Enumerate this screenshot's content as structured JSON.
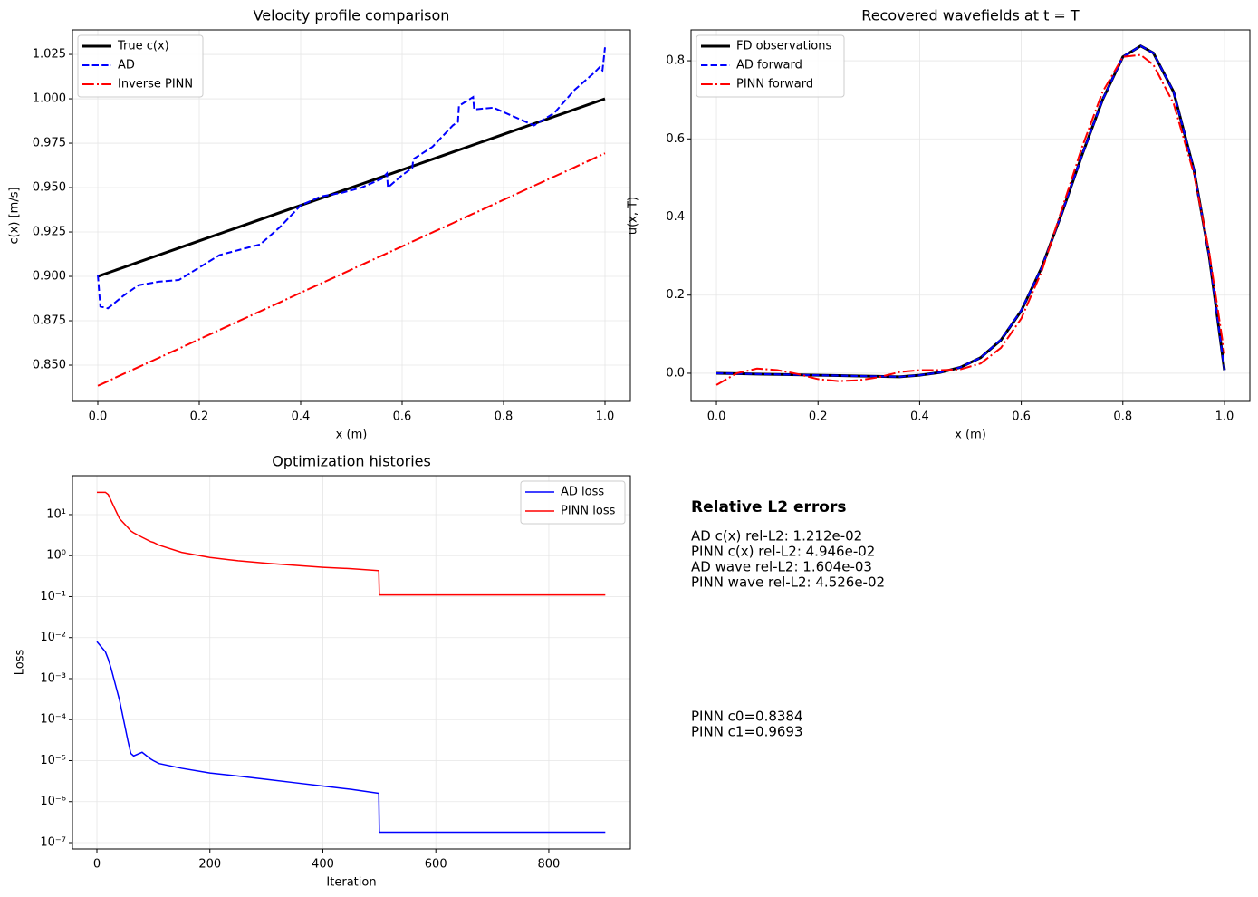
{
  "chart_data": [
    {
      "type": "line",
      "title": "Velocity profile comparison",
      "xlabel": "x (m)",
      "ylabel": "c(x) [m/s]",
      "x": [
        0,
        0.005,
        0.02,
        0.05,
        0.08,
        0.12,
        0.16,
        0.2,
        0.24,
        0.28,
        0.32,
        0.36,
        0.4,
        0.44,
        0.48,
        0.52,
        0.56,
        0.57,
        0.572,
        0.6,
        0.62,
        0.622,
        0.66,
        0.7,
        0.71,
        0.712,
        0.74,
        0.742,
        0.78,
        0.82,
        0.86,
        0.9,
        0.94,
        0.98,
        0.99,
        0.995,
        1.0
      ],
      "series": [
        {
          "name": "True c(x)",
          "color": "#000000",
          "linewidth": 3,
          "linestyle": "solid",
          "values": [
            0.9,
            0.9005,
            0.902,
            0.905,
            0.908,
            0.912,
            0.916,
            0.92,
            0.924,
            0.928,
            0.932,
            0.936,
            0.94,
            0.944,
            0.948,
            0.952,
            0.956,
            0.957,
            0.9572,
            0.96,
            0.962,
            0.9622,
            0.966,
            0.97,
            0.971,
            0.9712,
            0.974,
            0.9742,
            0.978,
            0.982,
            0.986,
            0.99,
            0.994,
            0.998,
            0.999,
            0.9995,
            1.0
          ]
        },
        {
          "name": "AD",
          "color": "#0000ff",
          "linewidth": 2,
          "linestyle": "dashed",
          "values": [
            0.901,
            0.883,
            0.882,
            0.889,
            0.895,
            0.897,
            0.898,
            0.905,
            0.912,
            0.915,
            0.918,
            0.928,
            0.94,
            0.945,
            0.947,
            0.95,
            0.955,
            0.958,
            0.95,
            0.957,
            0.961,
            0.966,
            0.973,
            0.985,
            0.987,
            0.996,
            1.001,
            0.994,
            0.995,
            0.99,
            0.985,
            0.992,
            1.005,
            1.015,
            1.018,
            1.016,
            1.029
          ]
        },
        {
          "name": "Inverse PINN",
          "color": "#ff0000",
          "linewidth": 2,
          "linestyle": "dashdot",
          "values": [
            0.8384,
            0.839,
            0.841,
            0.845,
            0.8489,
            0.8541,
            0.8593,
            0.8646,
            0.8698,
            0.8751,
            0.8803,
            0.8855,
            0.8908,
            0.896,
            0.9012,
            0.9065,
            0.9117,
            0.913,
            0.9133,
            0.9169,
            0.9196,
            0.9198,
            0.9248,
            0.93,
            0.9313,
            0.9316,
            0.9353,
            0.9355,
            0.9405,
            0.9457,
            0.951,
            0.9562,
            0.9614,
            0.9667,
            0.968,
            0.9686,
            0.9693
          ]
        }
      ],
      "xlim": [
        -0.05,
        1.05
      ],
      "xticks": [
        {
          "value": 0,
          "label": "0.0"
        },
        0.2,
        0.4,
        0.6,
        0.8,
        {
          "value": 1,
          "label": "1.0"
        }
      ],
      "ylim": [
        0.8296,
        1.0388
      ],
      "yticks": [
        {
          "value": 0.85,
          "label": "0.850"
        },
        0.875,
        {
          "value": 0.9,
          "label": "0.900"
        },
        0.925,
        {
          "value": 0.95,
          "label": "0.950"
        },
        0.975,
        {
          "value": 1,
          "label": "1.000"
        },
        1.025
      ],
      "grid": true,
      "legend": "upper left"
    },
    {
      "type": "line",
      "title": "Recovered wavefields at t = T",
      "xlabel": "x (m)",
      "ylabel": "u(x, T)",
      "x": [
        0,
        0.04,
        0.08,
        0.12,
        0.16,
        0.2,
        0.24,
        0.28,
        0.32,
        0.36,
        0.4,
        0.44,
        0.48,
        0.52,
        0.56,
        0.6,
        0.64,
        0.68,
        0.72,
        0.76,
        0.8,
        0.835,
        0.86,
        0.9,
        0.94,
        0.97,
        1.0
      ],
      "series": [
        {
          "name": "FD observations",
          "color": "#000000",
          "linewidth": 3,
          "linestyle": "solid",
          "values": [
            0,
            -0.001,
            -0.002,
            -0.003,
            -0.004,
            -0.005,
            -0.006,
            -0.007,
            -0.008,
            -0.009,
            -0.005,
            0.002,
            0.015,
            0.04,
            0.085,
            0.16,
            0.27,
            0.41,
            0.56,
            0.7,
            0.81,
            0.838,
            0.82,
            0.72,
            0.52,
            0.3,
            0.008
          ]
        },
        {
          "name": "AD forward",
          "color": "#0000ff",
          "linewidth": 2,
          "linestyle": "dashed",
          "values": [
            0,
            -0.001,
            -0.002,
            -0.003,
            -0.004,
            -0.005,
            -0.006,
            -0.007,
            -0.008,
            -0.009,
            -0.005,
            0.002,
            0.015,
            0.04,
            0.086,
            0.161,
            0.27,
            0.41,
            0.56,
            0.7,
            0.81,
            0.838,
            0.82,
            0.72,
            0.52,
            0.3,
            0.008
          ]
        },
        {
          "name": "PINN forward",
          "color": "#ff0000",
          "linewidth": 2,
          "linestyle": "dashdot",
          "values": [
            -0.03,
            0,
            0.012,
            0.008,
            -0.002,
            -0.015,
            -0.02,
            -0.018,
            -0.01,
            0.003,
            0.008,
            0.008,
            0.01,
            0.025,
            0.065,
            0.14,
            0.26,
            0.42,
            0.58,
            0.72,
            0.81,
            0.815,
            0.79,
            0.69,
            0.51,
            0.31,
            0.05
          ]
        }
      ],
      "xlim": [
        -0.05,
        1.05
      ],
      "xticks": [
        {
          "value": 0,
          "label": "0.0"
        },
        0.2,
        0.4,
        0.6,
        0.8,
        {
          "value": 1,
          "label": "1.0"
        }
      ],
      "ylim": [
        -0.072,
        0.879
      ],
      "yticks": [
        {
          "value": 0,
          "label": "0.0"
        },
        0.2,
        0.4,
        0.6,
        0.8
      ],
      "grid": true,
      "legend": "upper left"
    },
    {
      "type": "line",
      "title": "Optimization histories",
      "xlabel": "Iteration",
      "ylabel": "Loss",
      "yscale": "log",
      "x": [
        0,
        15,
        20,
        25,
        40,
        55,
        60,
        65,
        80,
        95,
        100,
        110,
        150,
        200,
        250,
        300,
        350,
        400,
        450,
        499,
        500,
        900
      ],
      "series": [
        {
          "name": "AD loss",
          "color": "#0000ff",
          "linewidth": 1.5,
          "linestyle": "solid",
          "values": [
            0.008,
            0.0045,
            0.003,
            0.0018,
            0.0003,
            3e-05,
            1.5e-05,
            1.3e-05,
            1.6e-05,
            1.1e-05,
            1e-05,
            8.5e-06,
            6.5e-06,
            5e-06,
            4.2e-06,
            3.5e-06,
            2.9e-06,
            2.4e-06,
            2e-06,
            1.6e-06,
            1.8e-07,
            1.8e-07
          ]
        },
        {
          "name": "PINN loss",
          "color": "#ff0000",
          "linewidth": 1.5,
          "linestyle": "solid",
          "values": [
            35,
            35,
            31,
            22,
            8,
            4.8,
            4,
            3.6,
            2.8,
            2.2,
            2.1,
            1.8,
            1.2,
            0.9,
            0.75,
            0.65,
            0.58,
            0.52,
            0.48,
            0.43,
            0.11,
            0.11
          ]
        }
      ],
      "xlim": [
        -43.3,
        944.4
      ],
      "xticks": [
        0,
        200,
        400,
        600,
        800
      ],
      "ylim": [
        7e-08,
        89
      ],
      "yticks": [
        {
          "value": 1e-07,
          "label": "10⁻⁷"
        },
        {
          "value": 1e-06,
          "label": "10⁻⁶"
        },
        {
          "value": 1e-05,
          "label": "10⁻⁵"
        },
        {
          "value": 0.0001,
          "label": "10⁻⁴"
        },
        {
          "value": 0.001,
          "label": "10⁻³"
        },
        {
          "value": 0.01,
          "label": "10⁻²"
        },
        {
          "value": 0.1,
          "label": "10⁻¹"
        },
        {
          "value": 1,
          "label": "10⁰"
        },
        {
          "value": 10,
          "label": "10¹"
        }
      ],
      "grid": true,
      "legend": "upper right"
    }
  ],
  "text_panel": {
    "title": "Relative L2 errors",
    "lines": [
      "AD c(x) rel-L2: 1.212e-02",
      "PINN c(x) rel-L2: 4.946e-02",
      "AD wave rel-L2: 1.604e-03",
      "PINN wave rel-L2: 4.526e-02"
    ],
    "notes": [
      "PINN c0=0.8384",
      "PINN c1=0.9693"
    ]
  }
}
